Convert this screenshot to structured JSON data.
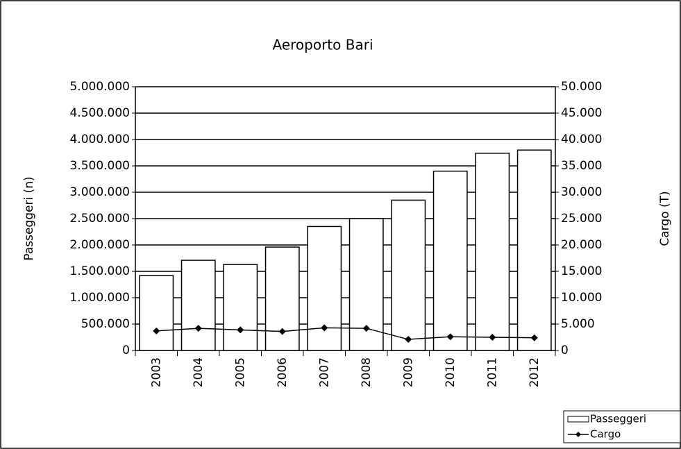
{
  "chart_data": {
    "type": "bar",
    "title": "Aeroporto Bari",
    "y_label": "Passeggeri (n)",
    "y2_label": "Cargo (T)",
    "categories": [
      "2003",
      "2004",
      "2005",
      "2006",
      "2007",
      "2008",
      "2009",
      "2010",
      "2011",
      "2012"
    ],
    "series": [
      {
        "name": "Passeggeri",
        "type": "bar",
        "color": "#ffffff",
        "values": [
          1420000,
          1710000,
          1630000,
          1960000,
          2350000,
          2500000,
          2850000,
          3400000,
          3740000,
          3800000
        ]
      },
      {
        "name": "Cargo",
        "type": "line",
        "axis": "y2",
        "color": "#000000",
        "values": [
          3700,
          4200,
          3900,
          3600,
          4300,
          4200,
          2100,
          2600,
          2500,
          2400
        ]
      }
    ],
    "ylim": [
      0,
      5000000
    ],
    "yticks": [
      0,
      {
        "value": 500000,
        "label": "500.000"
      },
      {
        "value": 1000000,
        "label": "1.000.000"
      },
      {
        "value": 1500000,
        "label": "1.500.000"
      },
      {
        "value": 2000000,
        "label": "2.000.000"
      },
      {
        "value": 2500000,
        "label": "2.500.000"
      },
      {
        "value": 3000000,
        "label": "3.000.000"
      },
      {
        "value": 3500000,
        "label": "3.500.000"
      },
      {
        "value": 4000000,
        "label": "4.000.000"
      },
      {
        "value": 4500000,
        "label": "4.500.000"
      },
      {
        "value": 5000000,
        "label": "5.000.000"
      }
    ],
    "y2lim": [
      0,
      50000
    ],
    "y2ticks": [
      0,
      {
        "value": 5000,
        "label": "5.000"
      },
      {
        "value": 10000,
        "label": "10.000"
      },
      {
        "value": 15000,
        "label": "15.000"
      },
      {
        "value": 20000,
        "label": "20.000"
      },
      {
        "value": 25000,
        "label": "25.000"
      },
      {
        "value": 30000,
        "label": "30.000"
      },
      {
        "value": 35000,
        "label": "35.000"
      },
      {
        "value": 40000,
        "label": "40.000"
      },
      {
        "value": 45000,
        "label": "45.000"
      },
      {
        "value": 50000,
        "label": "50.000"
      }
    ],
    "grid": true,
    "legend": "bottom-right"
  }
}
